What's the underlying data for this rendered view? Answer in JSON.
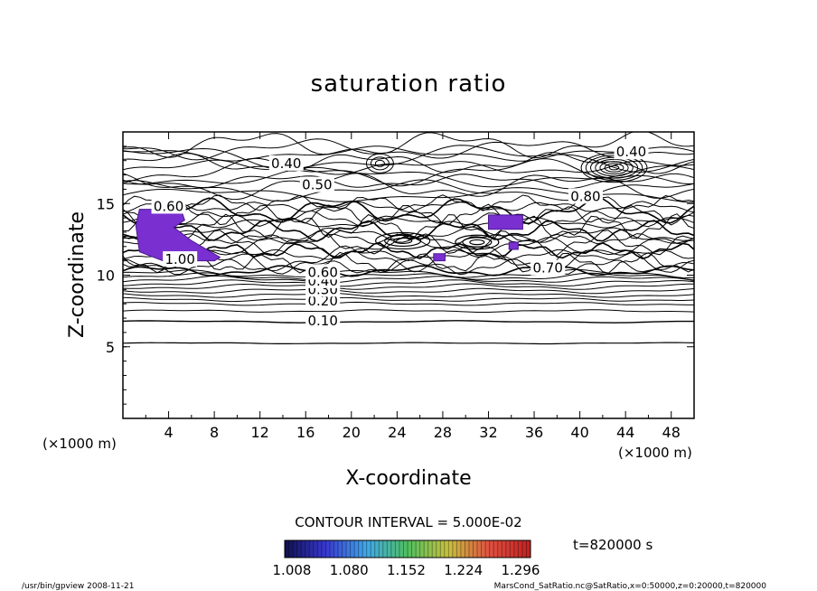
{
  "chart_data": {
    "type": "contour",
    "title": "saturation ratio",
    "xlabel": "X-coordinate",
    "ylabel": "Z-coordinate",
    "x_unit_label": "(×1000 m)",
    "y_unit_label": "(×1000 m)",
    "xlim": [
      0,
      50
    ],
    "ylim": [
      0,
      20
    ],
    "x_ticks": [
      "4",
      "8",
      "12",
      "16",
      "20",
      "24",
      "28",
      "32",
      "36",
      "40",
      "44",
      "48"
    ],
    "y_ticks": [
      "5",
      "10",
      "15"
    ],
    "contour_interval_text": "CONTOUR INTERVAL = 5.000E-02",
    "contour_labels": [
      {
        "text": "0.10",
        "x": 17.5,
        "z": 6.8
      },
      {
        "text": "0.20",
        "x": 17.5,
        "z": 8.2
      },
      {
        "text": "0.30",
        "x": 17.5,
        "z": 9.0
      },
      {
        "text": "0.40",
        "x": 17.5,
        "z": 9.6
      },
      {
        "text": "0.60",
        "x": 17.5,
        "z": 10.2
      },
      {
        "text": "0.40",
        "x": 14.3,
        "z": 17.8
      },
      {
        "text": "0.50",
        "x": 17.0,
        "z": 16.3
      },
      {
        "text": "0.70",
        "x": 37.2,
        "z": 10.5
      },
      {
        "text": "0.80",
        "x": 40.5,
        "z": 15.5
      },
      {
        "text": "0.40",
        "x": 44.5,
        "z": 18.6
      },
      {
        "text": "0.60",
        "x": 4.0,
        "z": 14.8
      },
      {
        "text": "1.00",
        "x": 5.0,
        "z": 11.1
      }
    ],
    "supersaturated_regions": [
      {
        "x_range": [
          0.5,
          8.5
        ],
        "z_range": [
          11.0,
          14.6
        ]
      },
      {
        "x_range": [
          32.0,
          35.0
        ],
        "z_range": [
          13.2,
          14.2
        ]
      },
      {
        "x_range": [
          27.2,
          28.2
        ],
        "z_range": [
          11.0,
          11.5
        ]
      },
      {
        "x_range": [
          33.8,
          34.6
        ],
        "z_range": [
          11.8,
          12.3
        ]
      }
    ],
    "colorbar": {
      "ticks": [
        "1.008",
        "1.080",
        "1.152",
        "1.224",
        "1.296"
      ],
      "min": 1.008,
      "max": 1.296,
      "colors": [
        "#101050",
        "#3838d0",
        "#40a8e8",
        "#50c060",
        "#c8c040",
        "#e05040",
        "#c02020"
      ]
    },
    "time_label": "t=820000 s",
    "footer_left": "/usr/bin/gpview   2008-11-21",
    "footer_right": "MarsCond_SatRatio.nc@SatRatio,x=0:50000,z=0:20000,t=820000",
    "fill_color": "#7a2fd0"
  }
}
